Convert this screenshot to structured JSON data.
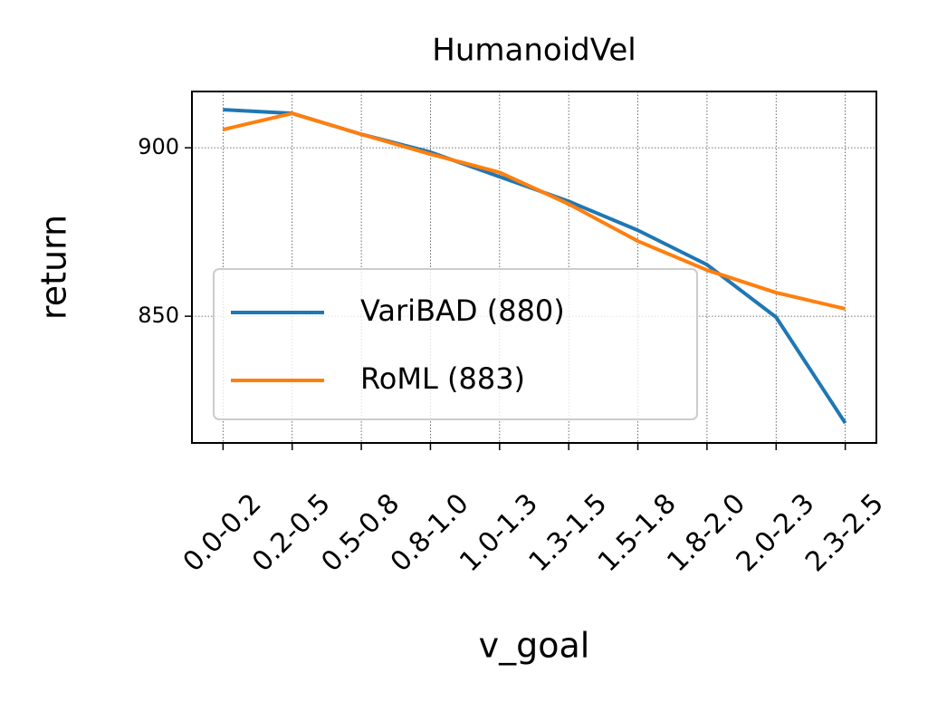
{
  "chart_data": {
    "type": "line",
    "title": "HumanoidVel",
    "x_label": "v_goal",
    "y_label": "return",
    "categories": [
      "0.0-0.2",
      "0.2-0.5",
      "0.5-0.8",
      "0.8-1.0",
      "1.0-1.3",
      "1.3-1.5",
      "1.5-1.8",
      "1.8-2.0",
      "2.0-2.3",
      "2.3-2.5"
    ],
    "series": [
      {
        "name": "VariBAD (880)",
        "color": "#1f77b4",
        "values": [
          911.3,
          910.2,
          904,
          898.7,
          891.4,
          884.1,
          875.5,
          865.3,
          849.7,
          818.3
        ]
      },
      {
        "name": "RoML (883)",
        "color": "#ff7f0e",
        "values": [
          905.4,
          910.2,
          904,
          898.1,
          892.7,
          883.3,
          872.3,
          863.7,
          857,
          852.2
        ]
      }
    ],
    "ylim": [
      812.4,
      916.7
    ],
    "yticks": [
      850,
      900
    ],
    "grid": true,
    "legend": "lower left"
  }
}
